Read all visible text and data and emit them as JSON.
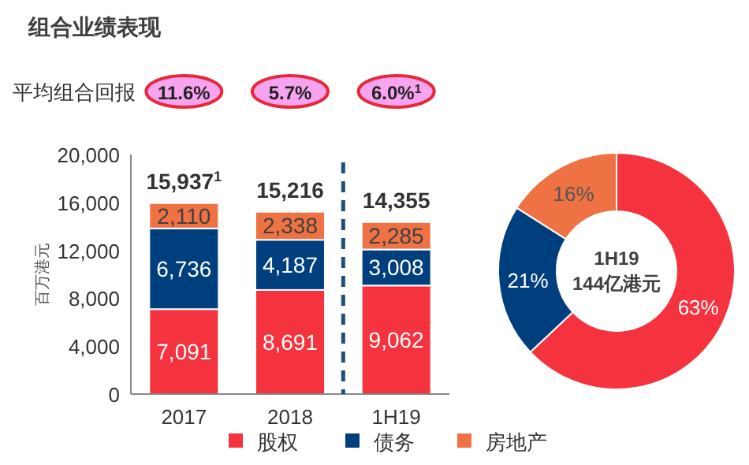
{
  "chart_data": [
    {
      "type": "bar",
      "title": "组合业绩表现",
      "categories": [
        "2017",
        "2018",
        "1H19"
      ],
      "stacked": true,
      "series": [
        {
          "color": "#f5333f",
          "values": [
            7091,
            8691,
            9062
          ],
          "value_labels": [
            "7,091",
            "8,691",
            "9,062"
          ]
        },
        {
          "color": "#003f7d",
          "values": [
            6736,
            4187,
            3008
          ],
          "value_labels": [
            "6,736",
            "4,187",
            "3,008"
          ]
        },
        {
          "color": "#ee7244",
          "values": [
            2110,
            2338,
            2285
          ],
          "value_labels": [
            "2,110",
            "2,338",
            "2,285"
          ]
        }
      ],
      "totals": [
        "15,937$^{1}$",
        "15,216",
        "14,355"
      ],
      "ylabel": "百万港元",
      "ylim": [
        0,
        20000
      ],
      "yticks": [
        {
          "value": 0,
          "label": "0"
        },
        {
          "value": 4000,
          "label": "4,000"
        },
        {
          "value": 8000,
          "label": "8,000"
        },
        {
          "value": 12000,
          "label": "12,000"
        },
        {
          "value": 16000,
          "label": "16,000"
        },
        {
          "value": 20000,
          "label": "20,000"
        }
      ],
      "annotations": [
        "平均组合回报",
        "11.6%",
        "5.7%",
        "6.0%$^{1}$"
      ]
    },
    {
      "type": "donut",
      "categories": [
        "股权",
        "债务",
        "房地产"
      ],
      "values": [
        63,
        21,
        16
      ],
      "colors": [
        "#f5333f",
        "#003f7d",
        "#ee7244"
      ],
      "value_labels": [
        "63%",
        "21%",
        "16%"
      ],
      "annotations": [
        "1H19",
        "144亿港元"
      ],
      "legend": "bottom"
    }
  ]
}
